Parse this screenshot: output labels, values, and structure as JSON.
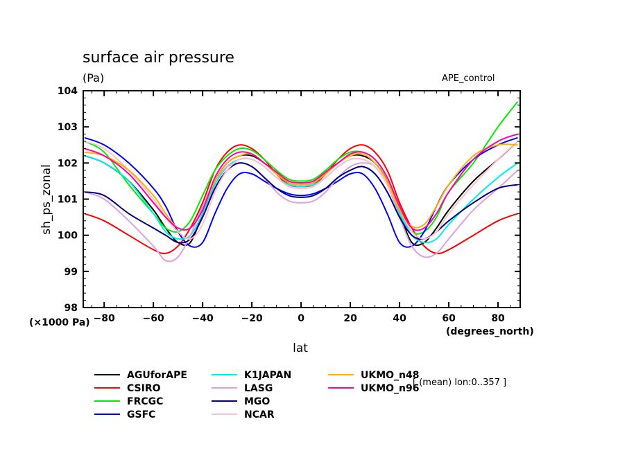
{
  "chart_data": {
    "type": "line",
    "title": "surface air pressure",
    "units_label": "(Pa)",
    "experiment_label": "APE_control",
    "xlabel": "lat",
    "xunits": "(degrees_north)",
    "ylabel": "sh_ps_zonal",
    "yunits": "(×1000 Pa)",
    "note": "[ (mean) lon:0..357 ]",
    "xlim": [
      -88.5,
      89
    ],
    "ylim": [
      98,
      104
    ],
    "xticks": [
      -80,
      -60,
      -40,
      -20,
      0,
      20,
      40,
      60,
      80
    ],
    "yticks": [
      98,
      99,
      100,
      101,
      102,
      103,
      104
    ],
    "grid": false,
    "legend_position": "bottom",
    "x": [
      -88,
      -80,
      -70,
      -60,
      -55,
      -50,
      -45,
      -40,
      -35,
      -30,
      -25,
      -20,
      -15,
      -10,
      -5,
      0,
      5,
      10,
      15,
      20,
      25,
      30,
      35,
      40,
      45,
      50,
      55,
      60,
      70,
      80,
      88
    ],
    "series": [
      {
        "name": "AGUforAPE",
        "color": "#000000",
        "values": [
          102.2,
          102.0,
          101.5,
          100.7,
          100.2,
          99.8,
          99.8,
          100.6,
          101.5,
          102.0,
          102.2,
          102.2,
          102.0,
          101.7,
          101.45,
          101.4,
          101.45,
          101.7,
          102.0,
          102.2,
          102.2,
          102.0,
          101.5,
          100.6,
          99.8,
          99.8,
          100.2,
          100.7,
          101.5,
          102.1,
          102.6
        ]
      },
      {
        "name": "CSIRO",
        "color": "#ff0000",
        "values": [
          100.6,
          100.4,
          100.0,
          99.6,
          99.5,
          99.7,
          100.2,
          100.9,
          101.8,
          102.3,
          102.5,
          102.4,
          102.1,
          101.7,
          101.4,
          101.35,
          101.4,
          101.7,
          102.1,
          102.4,
          102.5,
          102.3,
          101.8,
          100.9,
          100.2,
          99.7,
          99.5,
          99.6,
          100.0,
          100.4,
          100.6
        ]
      },
      {
        "name": "FRCGC",
        "color": "#00ee00",
        "values": [
          102.6,
          102.3,
          101.4,
          100.6,
          100.2,
          100.1,
          100.4,
          101.1,
          101.8,
          102.2,
          102.4,
          102.35,
          102.1,
          101.8,
          101.55,
          101.5,
          101.55,
          101.8,
          102.1,
          102.3,
          102.3,
          102.1,
          101.6,
          100.7,
          100.1,
          100.1,
          100.5,
          101.2,
          102.0,
          103.0,
          103.7
        ]
      },
      {
        "name": "GSFC",
        "color": "#0000ff",
        "values": [
          102.7,
          102.5,
          102.0,
          101.3,
          100.8,
          100.1,
          99.7,
          99.8,
          100.6,
          101.3,
          101.7,
          101.7,
          101.5,
          101.3,
          101.15,
          101.1,
          101.15,
          101.3,
          101.5,
          101.7,
          101.7,
          101.3,
          100.6,
          99.8,
          99.7,
          100.1,
          100.8,
          101.4,
          102.1,
          102.5,
          102.7
        ]
      },
      {
        "name": "K1JAPAN",
        "color": "#00eeee",
        "values": [
          102.2,
          102.0,
          101.5,
          100.6,
          100.1,
          99.9,
          100.0,
          100.6,
          101.4,
          101.9,
          102.1,
          102.1,
          101.9,
          101.6,
          101.4,
          101.35,
          101.4,
          101.6,
          101.9,
          102.1,
          102.1,
          101.9,
          101.4,
          100.6,
          100.0,
          99.8,
          99.9,
          100.3,
          101.0,
          101.6,
          102.0
        ]
      },
      {
        "name": "LASG",
        "color": "#dda0dd",
        "values": [
          101.2,
          101.0,
          100.4,
          99.7,
          99.3,
          99.4,
          100.0,
          100.8,
          101.5,
          101.9,
          102.0,
          101.9,
          101.6,
          101.2,
          100.95,
          100.9,
          100.95,
          101.2,
          101.6,
          101.9,
          102.0,
          101.9,
          101.4,
          100.5,
          99.7,
          99.4,
          99.5,
          99.9,
          100.7,
          101.3,
          101.8
        ]
      },
      {
        "name": "MGO",
        "color": "#000080",
        "values": [
          101.2,
          101.1,
          100.6,
          100.2,
          100.0,
          99.8,
          99.9,
          100.5,
          101.3,
          101.8,
          102.0,
          101.9,
          101.6,
          101.3,
          101.1,
          101.05,
          101.1,
          101.3,
          101.6,
          101.8,
          101.9,
          101.7,
          101.2,
          100.5,
          100.0,
          99.9,
          100.1,
          100.4,
          100.9,
          101.3,
          101.4
        ]
      },
      {
        "name": "NCAR",
        "color": "#ffc0cb",
        "values": [
          102.6,
          102.4,
          101.8,
          101.0,
          100.5,
          100.1,
          99.9,
          100.3,
          101.2,
          101.8,
          102.1,
          102.1,
          101.9,
          101.6,
          101.35,
          101.3,
          101.35,
          101.6,
          101.9,
          102.1,
          102.1,
          101.9,
          101.4,
          100.7,
          100.1,
          99.9,
          100.1,
          100.6,
          101.4,
          102.1,
          102.6
        ]
      },
      {
        "name": "UKMO_n48",
        "color": "#ffb000",
        "values": [
          102.3,
          102.2,
          101.8,
          101.1,
          100.6,
          100.2,
          100.2,
          100.7,
          101.5,
          102.0,
          102.2,
          102.25,
          102.0,
          101.7,
          101.45,
          101.4,
          101.45,
          101.7,
          102.0,
          102.2,
          102.25,
          102.0,
          101.5,
          100.7,
          100.25,
          100.3,
          100.8,
          101.4,
          102.2,
          102.5,
          102.5
        ]
      },
      {
        "name": "UKMO_n96",
        "color": "#ff00aa",
        "values": [
          102.4,
          102.2,
          101.7,
          100.9,
          100.5,
          100.2,
          100.2,
          100.7,
          101.6,
          102.1,
          102.3,
          102.25,
          102.0,
          101.75,
          101.5,
          101.45,
          101.5,
          101.75,
          102.0,
          102.25,
          102.3,
          102.1,
          101.6,
          100.8,
          100.2,
          100.2,
          100.6,
          101.2,
          102.1,
          102.6,
          102.8
        ]
      }
    ]
  }
}
